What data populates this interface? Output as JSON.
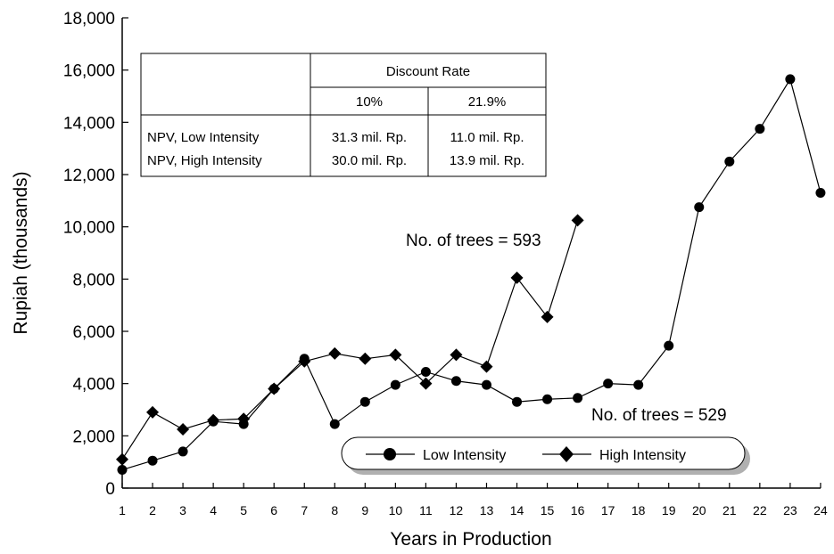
{
  "chart_data": {
    "type": "line",
    "xlabel": "Years in Production",
    "ylabel": "Rupiah (thousands)",
    "ylim": [
      0,
      18000
    ],
    "xlim": [
      1,
      24
    ],
    "x": [
      1,
      2,
      3,
      4,
      5,
      6,
      7,
      8,
      9,
      10,
      11,
      12,
      13,
      14,
      15,
      16,
      17,
      18,
      19,
      20,
      21,
      22,
      23,
      24
    ],
    "y_ticks": [
      "0",
      "2,000",
      "4,000",
      "6,000",
      "8,000",
      "10,000",
      "12,000",
      "14,000",
      "16,000",
      "18,000"
    ],
    "x_ticks": [
      "1",
      "2",
      "3",
      "4",
      "5",
      "6",
      "7",
      "8",
      "9",
      "10",
      "11",
      "12",
      "13",
      "14",
      "15",
      "16",
      "17",
      "18",
      "19",
      "20",
      "21",
      "22",
      "23",
      "24"
    ],
    "series": [
      {
        "name": "Low Intensity",
        "marker": "circle",
        "x": [
          1,
          2,
          3,
          4,
          5,
          6,
          7,
          8,
          9,
          10,
          11,
          12,
          13,
          14,
          15,
          16,
          17,
          18,
          19,
          20,
          21,
          22,
          23,
          24
        ],
        "values": [
          700,
          1050,
          1400,
          2550,
          2450,
          3800,
          4950,
          2450,
          3300,
          3950,
          4450,
          4100,
          3950,
          3300,
          3400,
          3450,
          4000,
          3950,
          5450,
          10750,
          12500,
          13750,
          15650,
          11300
        ]
      },
      {
        "name": "High Intensity",
        "marker": "diamond",
        "x": [
          1,
          2,
          3,
          4,
          5,
          6,
          7,
          8,
          9,
          10,
          11,
          12,
          13,
          14,
          15,
          16
        ],
        "values": [
          1100,
          2900,
          2250,
          2600,
          2650,
          3800,
          4850,
          5150,
          4950,
          5100,
          4000,
          5100,
          4650,
          8050,
          6550,
          10250
        ]
      }
    ],
    "annotations": [
      "No. of trees = 593",
      "No. of trees = 529"
    ],
    "legend": "bottom-right",
    "grid": false
  },
  "npv_table": {
    "header": "Discount Rate",
    "col1": "10%",
    "col2": "21.9%",
    "row1_label": "NPV, Low Intensity",
    "row2_label": "NPV, High Intensity",
    "row1_col1": "31.3 mil. Rp.",
    "row1_col2": "11.0 mil. Rp.",
    "row2_col1": "30.0 mil. Rp.",
    "row2_col2": "13.9 mil. Rp."
  }
}
